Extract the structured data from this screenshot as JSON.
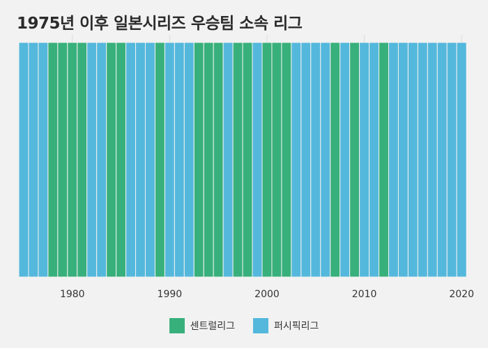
{
  "title": "1975년 이후 일본시리즈 우승팀 소속 리그",
  "colors": {
    "central": "#38b07c",
    "pacific": "#54b8dc",
    "background": "#f2f2f2",
    "grid": "#dcdcdc"
  },
  "legend": [
    {
      "key": "central",
      "label": "센트럴리그"
    },
    {
      "key": "pacific",
      "label": "퍼시픽리그"
    }
  ],
  "chart_data": {
    "type": "bar",
    "title": "1975년 이후 일본시리즈 우승팀 소속 리그",
    "xlabel": "",
    "ylabel": "",
    "xlim": [
      1975,
      2020
    ],
    "x_ticks": [
      1980,
      1990,
      2000,
      2010,
      2020
    ],
    "grid": true,
    "legend_position": "bottom",
    "years": [
      1975,
      1976,
      1977,
      1978,
      1979,
      1980,
      1981,
      1982,
      1983,
      1984,
      1985,
      1986,
      1987,
      1988,
      1989,
      1990,
      1991,
      1992,
      1993,
      1994,
      1995,
      1996,
      1997,
      1998,
      1999,
      2000,
      2001,
      2002,
      2003,
      2004,
      2005,
      2006,
      2007,
      2008,
      2009,
      2010,
      2011,
      2012,
      2013,
      2014,
      2015,
      2016,
      2017,
      2018,
      2019,
      2020
    ],
    "winning_league": [
      "pacific",
      "pacific",
      "pacific",
      "central",
      "central",
      "central",
      "central",
      "pacific",
      "pacific",
      "central",
      "central",
      "pacific",
      "pacific",
      "pacific",
      "central",
      "pacific",
      "pacific",
      "pacific",
      "central",
      "central",
      "central",
      "pacific",
      "central",
      "central",
      "pacific",
      "central",
      "central",
      "central",
      "pacific",
      "pacific",
      "pacific",
      "pacific",
      "central",
      "pacific",
      "central",
      "pacific",
      "pacific",
      "central",
      "pacific",
      "pacific",
      "pacific",
      "pacific",
      "pacific",
      "pacific",
      "pacific",
      "pacific"
    ]
  }
}
